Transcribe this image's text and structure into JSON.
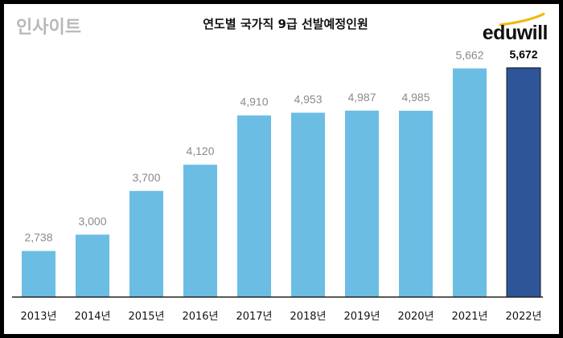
{
  "chart_data": {
    "type": "bar",
    "title": "연도별 국가직 9급 선발예정인원",
    "categories": [
      "2013년",
      "2014년",
      "2015년",
      "2016년",
      "2017년",
      "2018년",
      "2019년",
      "2020년",
      "2021년",
      "2022년"
    ],
    "values": [
      2738,
      3000,
      3700,
      4120,
      4910,
      4953,
      4987,
      4985,
      5662,
      5672
    ],
    "data_labels": [
      "2,738",
      "3,000",
      "3,700",
      "4,120",
      "4,910",
      "4,953",
      "4,987",
      "4,985",
      "5,662",
      "5,672"
    ],
    "ylim": [
      2000,
      6000
    ],
    "grid": false,
    "xlabel": "",
    "ylabel": "",
    "colors": {
      "bar": "#6bbde4",
      "highlight": "#2e5597",
      "label": "#8a8a8a",
      "highlight_label": "#000000"
    },
    "highlight_index": 9
  },
  "logo": {
    "text": "eduwill",
    "accent": "#f2b705"
  },
  "watermark": "인사이트"
}
